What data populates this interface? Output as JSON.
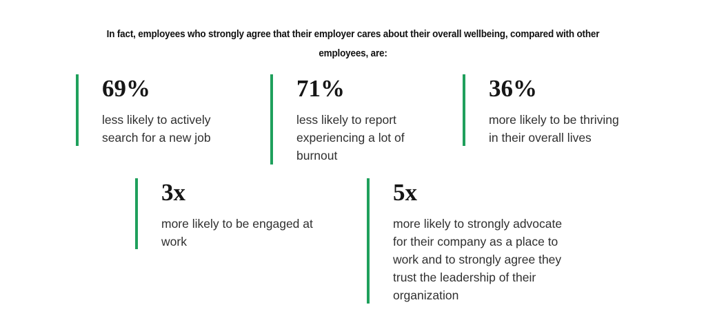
{
  "colors": {
    "background": "#ffffff",
    "accent_green": "#1fa05c",
    "heading_text": "#111111",
    "body_text": "#2f2f2f"
  },
  "header": {
    "lines": [
      "In fact, employees who strongly agree that their employer cares about their overall wellbeing, compared with other",
      "employees, are:"
    ]
  },
  "stats": [
    {
      "value": "69%",
      "description_lines": [
        "less likely to actively",
        "search for a new job"
      ]
    },
    {
      "value": "71%",
      "description_lines": [
        "less likely to report",
        "experiencing a lot of",
        "burnout"
      ]
    },
    {
      "value": "36%",
      "description_lines": [
        "more likely to be thriving",
        "in their overall lives"
      ]
    },
    {
      "value": "3x",
      "description_lines": [
        "more likely to be engaged at",
        "work"
      ]
    },
    {
      "value": "5x",
      "description_lines": [
        "more likely to strongly advocate",
        "for their company as a place to",
        "work and to strongly agree they",
        "trust the leadership of their",
        "organization"
      ]
    }
  ]
}
